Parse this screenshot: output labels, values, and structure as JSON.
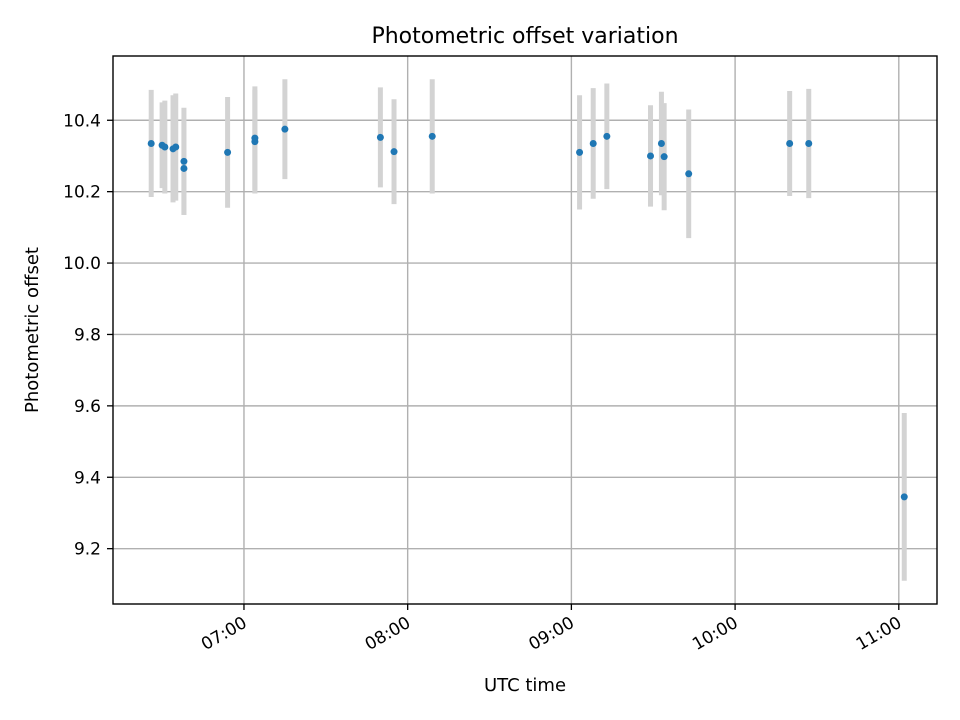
{
  "chart_data": {
    "type": "scatter",
    "title": "Photometric offset variation",
    "xlabel": "UTC time",
    "ylabel": "Photometric offset",
    "xlim": [
      "06:12",
      "11:14"
    ],
    "ylim": [
      9.045,
      10.58
    ],
    "grid": true,
    "x_ticks": [
      "07:00",
      "08:00",
      "09:00",
      "10:00",
      "11:00"
    ],
    "y_ticks": [
      9.2,
      9.4,
      9.6,
      9.8,
      10.0,
      10.2,
      10.4
    ],
    "y_tick_labels": [
      "9.2",
      "9.4",
      "9.6",
      "9.8",
      "10.0",
      "10.2",
      "10.4"
    ],
    "colors": {
      "points": "#1f77b4",
      "errorbars": "#d3d3d3",
      "grid": "#b0b0b0"
    },
    "series": [
      {
        "points": [
          {
            "x": "06:26",
            "y": 10.335,
            "err": 0.15
          },
          {
            "x": "06:30",
            "y": 10.33,
            "err": 0.12
          },
          {
            "x": "06:31",
            "y": 10.325,
            "err": 0.13
          },
          {
            "x": "06:34",
            "y": 10.32,
            "err": 0.15
          },
          {
            "x": "06:35",
            "y": 10.325,
            "err": 0.15
          },
          {
            "x": "06:38",
            "y": 10.285,
            "err": 0.15
          },
          {
            "x": "06:38",
            "y": 10.265,
            "err": 0.13
          },
          {
            "x": "06:54",
            "y": 10.31,
            "err": 0.155
          },
          {
            "x": "07:04",
            "y": 10.34,
            "err": 0.145
          },
          {
            "x": "07:04",
            "y": 10.35,
            "err": 0.145
          },
          {
            "x": "07:15",
            "y": 10.375,
            "err": 0.14
          },
          {
            "x": "07:50",
            "y": 10.352,
            "err": 0.14
          },
          {
            "x": "07:55",
            "y": 10.312,
            "err": 0.147
          },
          {
            "x": "08:09",
            "y": 10.355,
            "err": 0.16
          },
          {
            "x": "09:03",
            "y": 10.31,
            "err": 0.16
          },
          {
            "x": "09:08",
            "y": 10.335,
            "err": 0.155
          },
          {
            "x": "09:13",
            "y": 10.355,
            "err": 0.148
          },
          {
            "x": "09:29",
            "y": 10.3,
            "err": 0.142
          },
          {
            "x": "09:33",
            "y": 10.335,
            "err": 0.145
          },
          {
            "x": "09:34",
            "y": 10.298,
            "err": 0.15
          },
          {
            "x": "09:43",
            "y": 10.25,
            "err": 0.18
          },
          {
            "x": "10:20",
            "y": 10.335,
            "err": 0.147
          },
          {
            "x": "10:27",
            "y": 10.335,
            "err": 0.153
          },
          {
            "x": "11:02",
            "y": 9.345,
            "err": 0.235
          }
        ]
      }
    ]
  }
}
